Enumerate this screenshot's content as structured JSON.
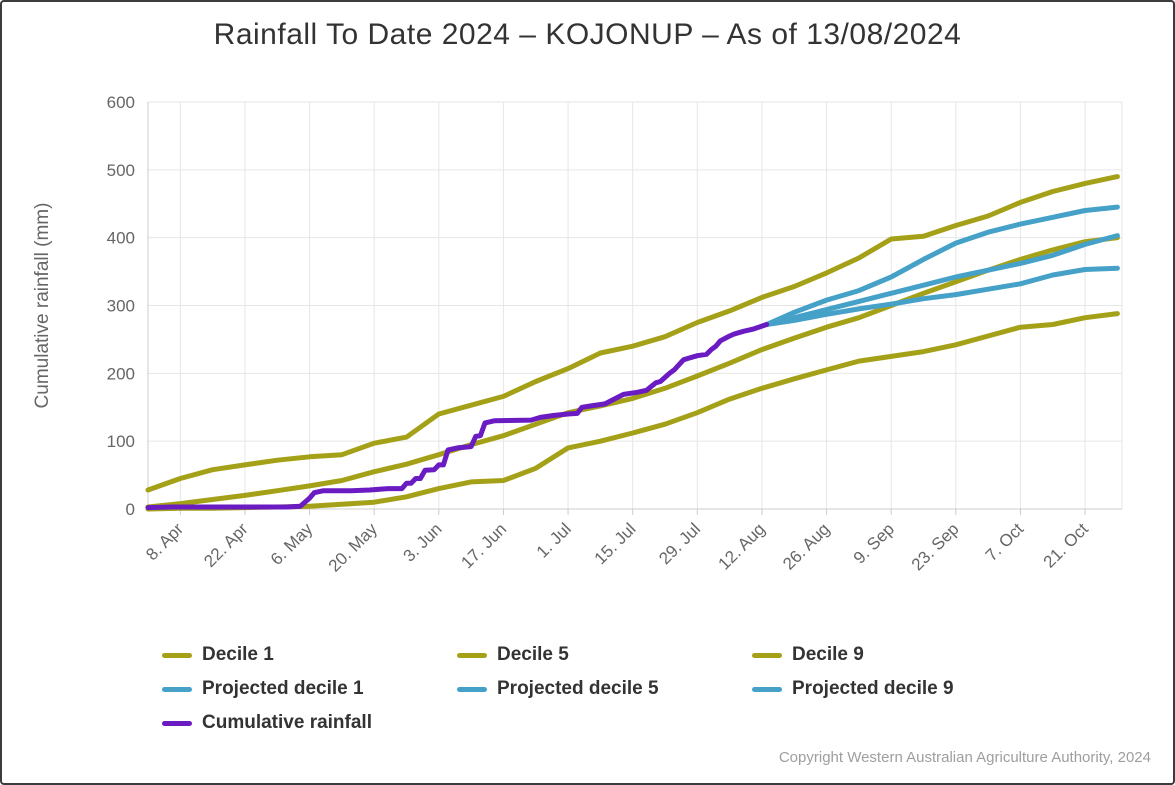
{
  "page": {
    "title": "Rainfall To Date 2024 – KOJONUP – As of 13/08/2024",
    "copyright": "Copyright Western Australian Agriculture Authority, 2024"
  },
  "colors": {
    "decile": "#a4a118",
    "projected": "#45a1c8",
    "cumulative": "#6a1bc2",
    "grid": "#e6e6e6",
    "axis": "#cccccc",
    "tick_text": "#666666",
    "title_text": "#333333",
    "legend_text": "#333333",
    "copyright_text": "#9e9e9e"
  },
  "legend": {
    "items": [
      {
        "label": "Decile 1",
        "color": "#a4a118"
      },
      {
        "label": "Decile 5",
        "color": "#a4a118"
      },
      {
        "label": "Decile 9",
        "color": "#a4a118"
      },
      {
        "label": "Projected decile 1",
        "color": "#45a1c8"
      },
      {
        "label": "Projected decile 5",
        "color": "#45a1c8"
      },
      {
        "label": "Projected decile 9",
        "color": "#45a1c8"
      },
      {
        "label": "Cumulative rainfall",
        "color": "#6a1bc2"
      }
    ]
  },
  "chart_data": {
    "type": "line",
    "title": "Rainfall To Date 2024 – KOJONUP – As of 13/08/2024",
    "xlabel": "",
    "ylabel": "Cumulative rainfall (mm)",
    "ylim": [
      0,
      600
    ],
    "yticks": [
      0,
      100,
      200,
      300,
      400,
      500,
      600
    ],
    "grid": "both",
    "legend_position": "bottom-left",
    "x_axis": {
      "unit": "days from 1 April 2024",
      "range": [
        0,
        211
      ],
      "ticks": [
        {
          "day": 7,
          "label": "8. Apr"
        },
        {
          "day": 21,
          "label": "22. Apr"
        },
        {
          "day": 35,
          "label": "6. May"
        },
        {
          "day": 49,
          "label": "20. May"
        },
        {
          "day": 63,
          "label": "3. Jun"
        },
        {
          "day": 77,
          "label": "17. Jun"
        },
        {
          "day": 91,
          "label": "1. Jul"
        },
        {
          "day": 105,
          "label": "15. Jul"
        },
        {
          "day": 119,
          "label": "29. Jul"
        },
        {
          "day": 133,
          "label": "12. Aug"
        },
        {
          "day": 147,
          "label": "26. Aug"
        },
        {
          "day": 161,
          "label": "9. Sep"
        },
        {
          "day": 175,
          "label": "23. Sep"
        },
        {
          "day": 189,
          "label": "7. Oct"
        },
        {
          "day": 203,
          "label": "21. Oct"
        }
      ]
    },
    "series": [
      {
        "name": "Decile 1",
        "color": "#a4a118",
        "width": 5,
        "points": [
          [
            0,
            0
          ],
          [
            7,
            1
          ],
          [
            14,
            1
          ],
          [
            21,
            2
          ],
          [
            28,
            3
          ],
          [
            35,
            4
          ],
          [
            42,
            7
          ],
          [
            49,
            10
          ],
          [
            56,
            18
          ],
          [
            63,
            30
          ],
          [
            70,
            40
          ],
          [
            77,
            42
          ],
          [
            84,
            60
          ],
          [
            91,
            90
          ],
          [
            98,
            100
          ],
          [
            105,
            112
          ],
          [
            112,
            125
          ],
          [
            119,
            142
          ],
          [
            126,
            162
          ],
          [
            133,
            178
          ],
          [
            140,
            192
          ],
          [
            147,
            205
          ],
          [
            154,
            218
          ],
          [
            161,
            225
          ],
          [
            168,
            232
          ],
          [
            175,
            242
          ],
          [
            182,
            255
          ],
          [
            189,
            268
          ],
          [
            196,
            272
          ],
          [
            203,
            282
          ],
          [
            210,
            288
          ]
        ]
      },
      {
        "name": "Decile 5",
        "color": "#a4a118",
        "width": 5,
        "points": [
          [
            0,
            3
          ],
          [
            7,
            8
          ],
          [
            14,
            14
          ],
          [
            21,
            20
          ],
          [
            28,
            27
          ],
          [
            35,
            34
          ],
          [
            42,
            42
          ],
          [
            49,
            55
          ],
          [
            56,
            66
          ],
          [
            63,
            80
          ],
          [
            70,
            95
          ],
          [
            77,
            108
          ],
          [
            84,
            125
          ],
          [
            91,
            142
          ],
          [
            98,
            152
          ],
          [
            105,
            163
          ],
          [
            112,
            178
          ],
          [
            119,
            196
          ],
          [
            126,
            215
          ],
          [
            133,
            235
          ],
          [
            140,
            252
          ],
          [
            147,
            268
          ],
          [
            154,
            282
          ],
          [
            161,
            300
          ],
          [
            168,
            318
          ],
          [
            175,
            335
          ],
          [
            182,
            352
          ],
          [
            189,
            368
          ],
          [
            196,
            382
          ],
          [
            203,
            394
          ],
          [
            210,
            400
          ]
        ]
      },
      {
        "name": "Decile 9",
        "color": "#a4a118",
        "width": 5,
        "points": [
          [
            0,
            28
          ],
          [
            7,
            45
          ],
          [
            14,
            58
          ],
          [
            21,
            65
          ],
          [
            28,
            72
          ],
          [
            35,
            77
          ],
          [
            42,
            80
          ],
          [
            49,
            97
          ],
          [
            56,
            106
          ],
          [
            63,
            140
          ],
          [
            70,
            153
          ],
          [
            77,
            166
          ],
          [
            84,
            188
          ],
          [
            91,
            207
          ],
          [
            98,
            230
          ],
          [
            105,
            240
          ],
          [
            112,
            254
          ],
          [
            119,
            275
          ],
          [
            126,
            292
          ],
          [
            133,
            312
          ],
          [
            140,
            328
          ],
          [
            147,
            348
          ],
          [
            154,
            370
          ],
          [
            161,
            398
          ],
          [
            168,
            402
          ],
          [
            175,
            418
          ],
          [
            182,
            432
          ],
          [
            189,
            452
          ],
          [
            196,
            468
          ],
          [
            203,
            480
          ],
          [
            210,
            490
          ]
        ]
      },
      {
        "name": "Projected decile 1",
        "color": "#45a1c8",
        "width": 5,
        "points": [
          [
            134,
            272
          ],
          [
            140,
            278
          ],
          [
            147,
            287
          ],
          [
            154,
            295
          ],
          [
            161,
            302
          ],
          [
            168,
            310
          ],
          [
            175,
            316
          ],
          [
            182,
            324
          ],
          [
            189,
            332
          ],
          [
            196,
            345
          ],
          [
            203,
            353
          ],
          [
            210,
            355
          ]
        ]
      },
      {
        "name": "Projected decile 5",
        "color": "#45a1c8",
        "width": 5,
        "points": [
          [
            134,
            272
          ],
          [
            140,
            282
          ],
          [
            147,
            294
          ],
          [
            154,
            306
          ],
          [
            161,
            318
          ],
          [
            168,
            330
          ],
          [
            175,
            342
          ],
          [
            182,
            352
          ],
          [
            189,
            362
          ],
          [
            196,
            374
          ],
          [
            203,
            390
          ],
          [
            210,
            403
          ]
        ]
      },
      {
        "name": "Projected decile 9",
        "color": "#45a1c8",
        "width": 5,
        "points": [
          [
            134,
            272
          ],
          [
            140,
            290
          ],
          [
            147,
            308
          ],
          [
            154,
            322
          ],
          [
            161,
            342
          ],
          [
            168,
            368
          ],
          [
            175,
            392
          ],
          [
            182,
            408
          ],
          [
            189,
            420
          ],
          [
            196,
            430
          ],
          [
            203,
            440
          ],
          [
            210,
            445
          ]
        ]
      },
      {
        "name": "Cumulative rainfall",
        "color": "#6a1bc2",
        "width": 5,
        "points": [
          [
            0,
            2
          ],
          [
            5,
            3
          ],
          [
            12,
            3
          ],
          [
            20,
            3
          ],
          [
            30,
            3
          ],
          [
            33,
            4
          ],
          [
            35,
            16
          ],
          [
            36,
            24
          ],
          [
            38,
            27
          ],
          [
            44,
            27
          ],
          [
            48,
            28
          ],
          [
            52,
            30
          ],
          [
            55,
            30
          ],
          [
            56,
            38
          ],
          [
            57,
            38
          ],
          [
            58,
            45
          ],
          [
            59,
            45
          ],
          [
            60,
            57
          ],
          [
            62,
            58
          ],
          [
            63,
            65
          ],
          [
            64,
            65
          ],
          [
            65,
            87
          ],
          [
            67,
            90
          ],
          [
            70,
            92
          ],
          [
            71,
            107
          ],
          [
            72,
            108
          ],
          [
            73,
            127
          ],
          [
            75,
            130
          ],
          [
            83,
            131
          ],
          [
            85,
            135
          ],
          [
            88,
            138
          ],
          [
            91,
            140
          ],
          [
            93,
            141
          ],
          [
            94,
            150
          ],
          [
            96,
            152
          ],
          [
            99,
            155
          ],
          [
            101,
            162
          ],
          [
            103,
            169
          ],
          [
            106,
            172
          ],
          [
            108,
            175
          ],
          [
            110,
            186
          ],
          [
            111,
            188
          ],
          [
            113,
            200
          ],
          [
            114,
            205
          ],
          [
            116,
            220
          ],
          [
            117,
            222
          ],
          [
            119,
            226
          ],
          [
            121,
            228
          ],
          [
            122,
            235
          ],
          [
            123,
            240
          ],
          [
            124,
            248
          ],
          [
            126,
            255
          ],
          [
            127,
            258
          ],
          [
            129,
            262
          ],
          [
            131,
            265
          ],
          [
            134,
            272
          ]
        ]
      }
    ]
  }
}
